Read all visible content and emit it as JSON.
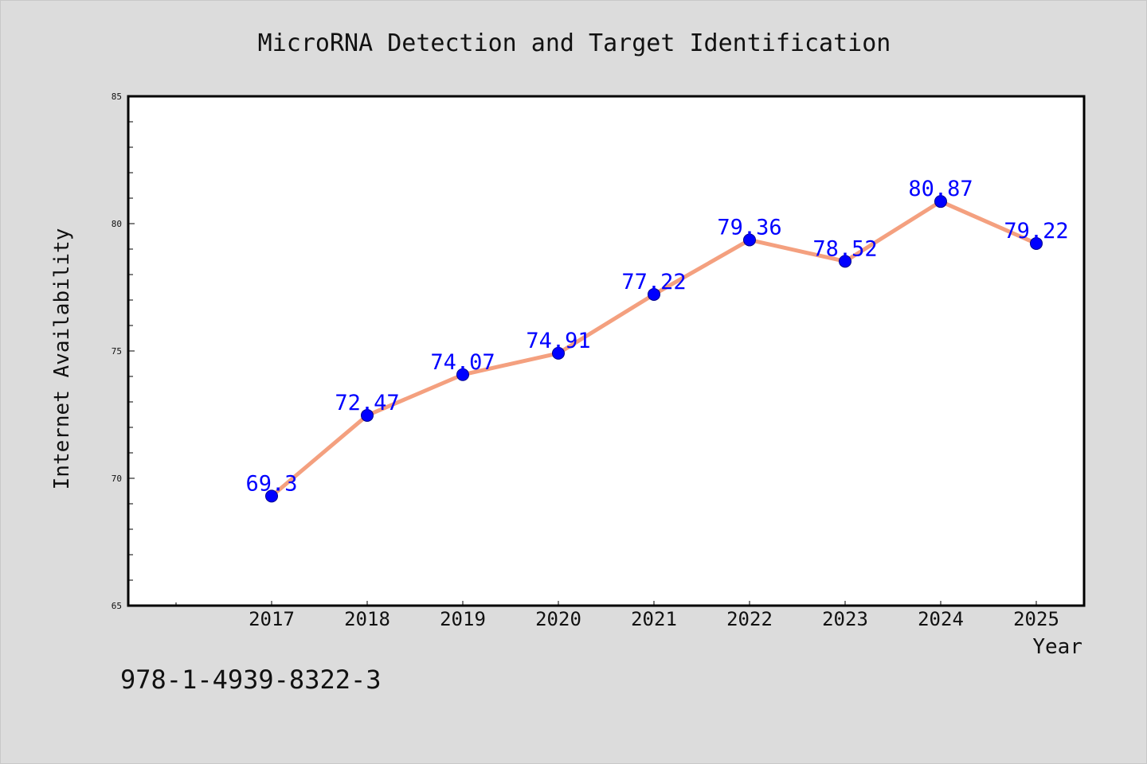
{
  "chart_data": {
    "type": "line",
    "title": "MicroRNA Detection and Target Identification",
    "xlabel": "Year",
    "ylabel": "Internet Availability",
    "x": [
      "2017",
      "2018",
      "2019",
      "2020",
      "2021",
      "2022",
      "2023",
      "2024",
      "2025"
    ],
    "y_tick_labels": [
      "65",
      "70",
      "75",
      "80",
      "85"
    ],
    "series": [
      {
        "values": [
          69.3,
          72.47,
          74.07,
          74.91,
          77.22,
          79.36,
          78.52,
          80.87,
          79.22
        ],
        "data_labels": [
          "69.3",
          "72.47",
          "74.07",
          "74.91",
          "77.22",
          "79.36",
          "78.52",
          "80.87",
          "79.22"
        ],
        "line_color": "#f4a07f",
        "marker_color": "#0000ff"
      }
    ],
    "ylim": [
      65,
      85
    ],
    "grid": false,
    "legend": "none"
  },
  "footer": {
    "text": "978-1-4939-8322-3"
  },
  "colors": {
    "background": "#dcdcdc",
    "plot_area": "#ffffff",
    "line": "#f4a07f",
    "marker": "#0000ff",
    "data_label": "#0000ff"
  }
}
